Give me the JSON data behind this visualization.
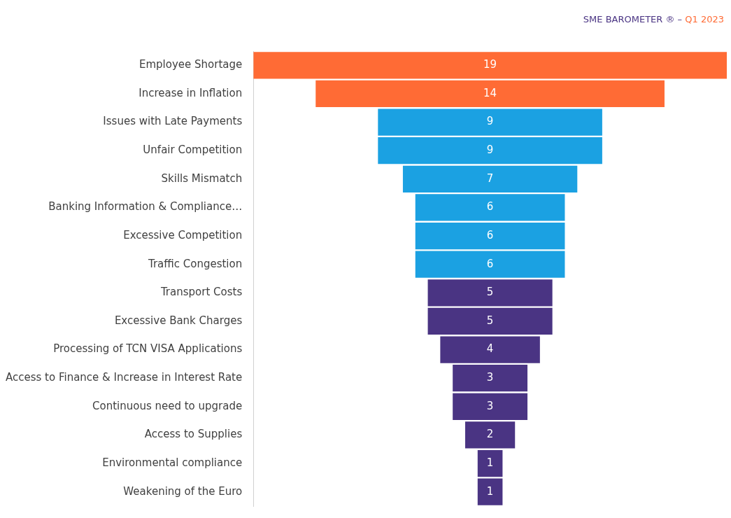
{
  "chart_data": {
    "type": "other",
    "title": "SME BAROMETER ® –",
    "subtitle": "Q1 2023",
    "categories": [
      "Employee Shortage",
      "Increase in Inflation",
      "Issues with Late Payments",
      "Unfair Competition",
      "Skills Mismatch",
      "Banking Information & Compliance…",
      "Excessive Competition",
      "Traffic Congestion",
      "Transport Costs",
      "Excessive Bank Charges",
      "Processing of TCN VISA Applications",
      "Access to Finance & Increase in Interest Rate",
      "Continuous need to upgrade",
      "Access to Supplies",
      "Environmental compliance",
      "Weakening of the Euro"
    ],
    "values": [
      19,
      14,
      9,
      9,
      7,
      6,
      6,
      6,
      5,
      5,
      4,
      3,
      3,
      2,
      1,
      1
    ],
    "colors": [
      "#ff6b35",
      "#ff6b35",
      "#1ba1e2",
      "#1ba1e2",
      "#1ba1e2",
      "#1ba1e2",
      "#1ba1e2",
      "#1ba1e2",
      "#4a3483",
      "#4a3483",
      "#4a3483",
      "#4a3483",
      "#4a3483",
      "#4a3483",
      "#4a3483",
      "#4a3483"
    ],
    "data_labels": true
  }
}
